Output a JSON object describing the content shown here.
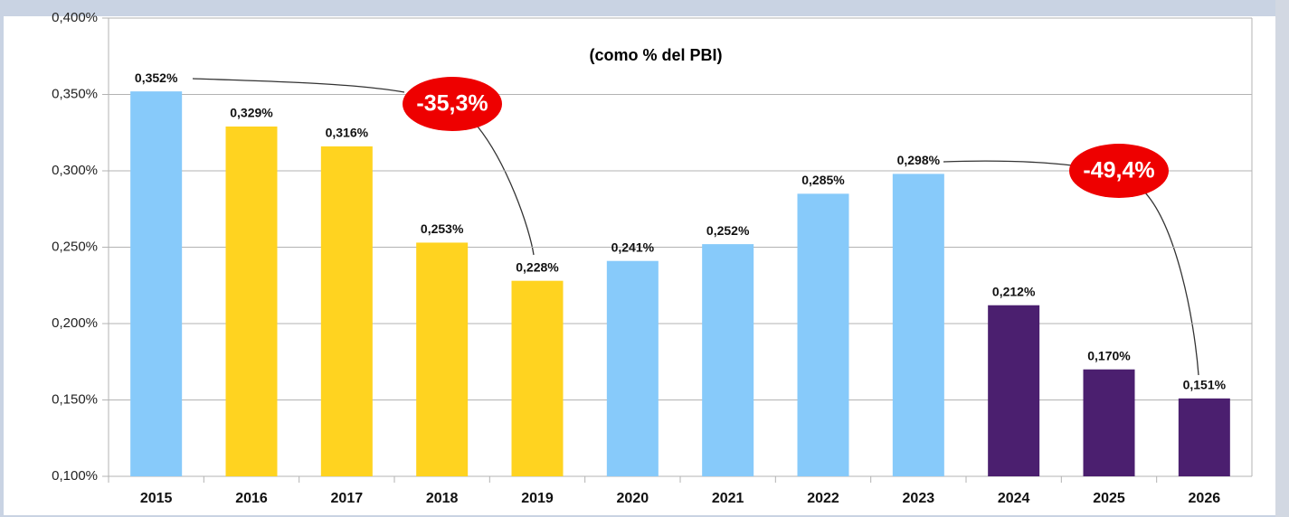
{
  "chart_data": {
    "type": "bar",
    "subtitle": "(como % del PBI)",
    "categories": [
      "2015",
      "2016",
      "2017",
      "2018",
      "2019",
      "2020",
      "2021",
      "2022",
      "2023",
      "2024",
      "2025",
      "2026"
    ],
    "values": [
      0.352,
      0.329,
      0.316,
      0.253,
      0.228,
      0.241,
      0.252,
      0.285,
      0.298,
      0.212,
      0.17,
      0.151
    ],
    "value_labels": [
      "0,352%",
      "0,329%",
      "0,316%",
      "0,253%",
      "0,228%",
      "0,241%",
      "0,252%",
      "0,285%",
      "0,298%",
      "0,212%",
      "0,170%",
      "0,151%"
    ],
    "colors": [
      "#87cafa",
      "#ffd320",
      "#ffd320",
      "#ffd320",
      "#ffd320",
      "#87cafa",
      "#87cafa",
      "#87cafa",
      "#87cafa",
      "#4b1f6f",
      "#4b1f6f",
      "#4b1f6f"
    ],
    "ylim": [
      0.1,
      0.4
    ],
    "yticks": [
      {
        "value": 0.1,
        "label": "0,100%"
      },
      {
        "value": 0.15,
        "label": "0,150%"
      },
      {
        "value": 0.2,
        "label": "0,200%"
      },
      {
        "value": 0.25,
        "label": "0,250%"
      },
      {
        "value": 0.3,
        "label": "0,300%"
      },
      {
        "value": 0.35,
        "label": "0,350%"
      },
      {
        "value": 0.4,
        "label": "0,400%"
      }
    ],
    "grid": true,
    "annotations": [
      {
        "text": "-35,3%",
        "color": "#ee0000"
      },
      {
        "text": "-49,4%",
        "color": "#ee0000"
      }
    ]
  }
}
